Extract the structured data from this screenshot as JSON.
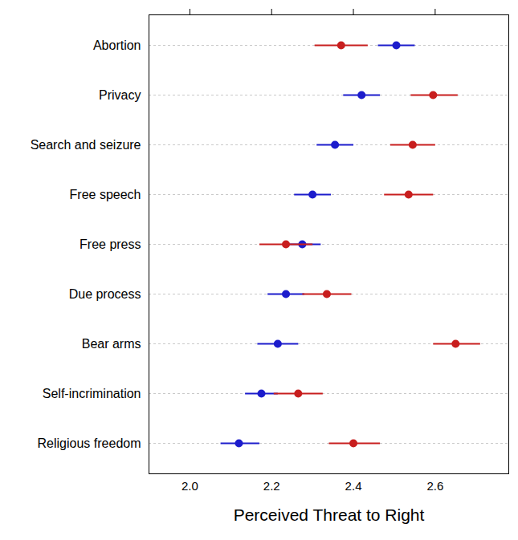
{
  "chart_data": {
    "type": "dot",
    "orientation": "horizontal",
    "xlabel": "Perceived Threat to Right",
    "categories": [
      "Abortion",
      "Privacy",
      "Search and seizure",
      "Free speech",
      "Free press",
      "Due process",
      "Bear arms",
      "Self-incrimination",
      "Religious freedom"
    ],
    "series": [
      {
        "color": "#1c1ccc",
        "marker": "circle",
        "values": [
          2.505,
          2.42,
          2.355,
          2.3,
          2.275,
          2.235,
          2.215,
          2.175,
          2.12
        ],
        "lower": [
          2.46,
          2.375,
          2.31,
          2.255,
          2.23,
          2.19,
          2.165,
          2.135,
          2.075
        ],
        "upper": [
          2.55,
          2.465,
          2.4,
          2.345,
          2.32,
          2.28,
          2.265,
          2.215,
          2.17
        ]
      },
      {
        "color": "#c81e1e",
        "marker": "circle",
        "values": [
          2.37,
          2.595,
          2.545,
          2.535,
          2.235,
          2.335,
          2.65,
          2.265,
          2.4
        ],
        "lower": [
          2.305,
          2.54,
          2.49,
          2.475,
          2.17,
          2.275,
          2.595,
          2.205,
          2.34
        ],
        "upper": [
          2.435,
          2.655,
          2.6,
          2.595,
          2.3,
          2.395,
          2.71,
          2.325,
          2.465
        ]
      }
    ],
    "xlim": [
      1.9,
      2.78
    ],
    "xticks": [
      {
        "value": 2.0,
        "label": "2.0"
      },
      {
        "value": 2.2,
        "label": "2.2"
      },
      {
        "value": 2.4,
        "label": "2.4"
      },
      {
        "value": 2.6,
        "label": "2.6"
      }
    ],
    "grid": true
  }
}
